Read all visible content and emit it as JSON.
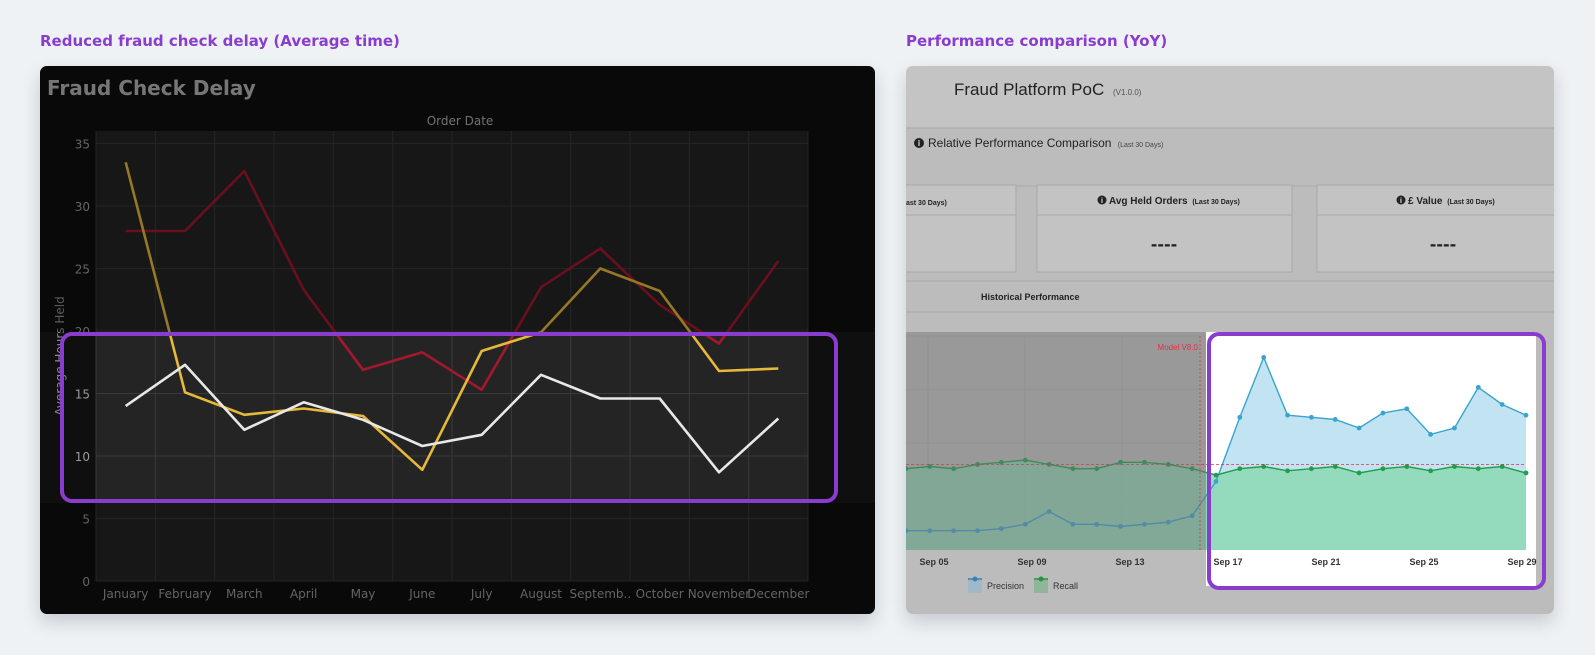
{
  "captions": {
    "left": "Reduced fraud check delay (Average time)",
    "right": "Performance comparison (YoY)"
  },
  "left_chart": {
    "type": "line",
    "title": "Fraud Check Delay",
    "top_axis_label": "Order Date",
    "ylabel": "Average Hours Held",
    "ylim": [
      0,
      36
    ],
    "yticks": [
      "0",
      "5",
      "10",
      "15",
      "20",
      "25",
      "30",
      "35"
    ],
    "categories": [
      "January",
      "February",
      "March",
      "April",
      "May",
      "June",
      "July",
      "August",
      "Septemb..",
      "October",
      "November",
      "December"
    ],
    "series": [
      {
        "color": "#a3182e",
        "values": [
          28.0,
          28.0,
          32.8,
          23.3,
          16.9,
          18.3,
          15.3,
          23.5,
          26.6,
          22.1,
          19.0,
          25.6
        ]
      },
      {
        "color": "#e6b93a",
        "values": [
          33.5,
          15.1,
          13.3,
          13.8,
          13.2,
          8.9,
          18.4,
          19.9,
          25.0,
          23.2,
          16.8,
          17.0
        ]
      },
      {
        "color": "#e8e8e8",
        "values": [
          14.0,
          17.3,
          12.1,
          14.3,
          12.9,
          10.8,
          11.7,
          16.5,
          14.6,
          14.6,
          8.7,
          13.0
        ]
      }
    ]
  },
  "right_panel": {
    "title": "Fraud Platform PoC",
    "version": "(V1.0.0)",
    "section_title": "Relative Performance Comparison",
    "section_suffix": "(Last 30 Days)",
    "cards": [
      {
        "title": "ast 30 Days)",
        "suffix": "",
        "value": ""
      },
      {
        "title": "Avg Held Orders",
        "suffix": "(Last 30 Days)",
        "value": "----"
      },
      {
        "title": "£ Value",
        "suffix": "(Last 30 Days)",
        "value": "----"
      }
    ],
    "history_title": "Historical Performance",
    "model_marker": "Model V8.0",
    "legend": [
      "Precision",
      "Recall"
    ],
    "colors": {
      "precision": "#3aa3cf",
      "recall": "#1f9e4b",
      "threshold": "#e0314b"
    }
  },
  "chart_data": [
    {
      "type": "line",
      "title": "Fraud Check Delay",
      "xlabel": "Order Date",
      "ylabel": "Average Hours Held",
      "ylim": [
        0,
        36
      ],
      "categories": [
        "January",
        "February",
        "March",
        "April",
        "May",
        "June",
        "July",
        "August",
        "Septemb..",
        "October",
        "November",
        "December"
      ],
      "series": [
        {
          "values": [
            28.0,
            28.0,
            32.8,
            23.3,
            16.9,
            18.3,
            15.3,
            23.5,
            26.6,
            22.1,
            19.0,
            25.6
          ]
        },
        {
          "values": [
            33.5,
            15.1,
            13.3,
            13.8,
            13.2,
            8.9,
            18.4,
            19.9,
            25.0,
            23.2,
            16.8,
            17.0
          ]
        },
        {
          "values": [
            14.0,
            17.3,
            12.1,
            14.3,
            12.9,
            10.8,
            11.7,
            16.5,
            14.6,
            14.6,
            8.7,
            13.0
          ]
        }
      ]
    },
    {
      "type": "area",
      "title": "Historical Performance",
      "xlabel": "",
      "ylabel": "",
      "ylim": [
        0,
        1
      ],
      "x_ticks": [
        "Sep 05",
        "Sep 09",
        "Sep 13",
        "Sep 17",
        "Sep 21",
        "Sep 25",
        "Sep 29"
      ],
      "threshold": 0.4,
      "marker_label": "Model V8.0",
      "series": [
        {
          "name": "Precision",
          "values": [
            0.09,
            0.09,
            0.09,
            0.09,
            0.1,
            0.12,
            0.18,
            0.12,
            0.12,
            0.11,
            0.12,
            0.13,
            0.16,
            0.32,
            0.62,
            0.9,
            0.63,
            0.62,
            0.61,
            0.57,
            0.64,
            0.66,
            0.54,
            0.57,
            0.76,
            0.68,
            0.63
          ]
        },
        {
          "name": "Recall",
          "values": [
            0.38,
            0.39,
            0.38,
            0.4,
            0.41,
            0.42,
            0.4,
            0.38,
            0.38,
            0.41,
            0.41,
            0.4,
            0.38,
            0.35,
            0.38,
            0.39,
            0.37,
            0.38,
            0.39,
            0.36,
            0.38,
            0.39,
            0.37,
            0.39,
            0.38,
            0.39,
            0.36
          ]
        }
      ]
    }
  ]
}
